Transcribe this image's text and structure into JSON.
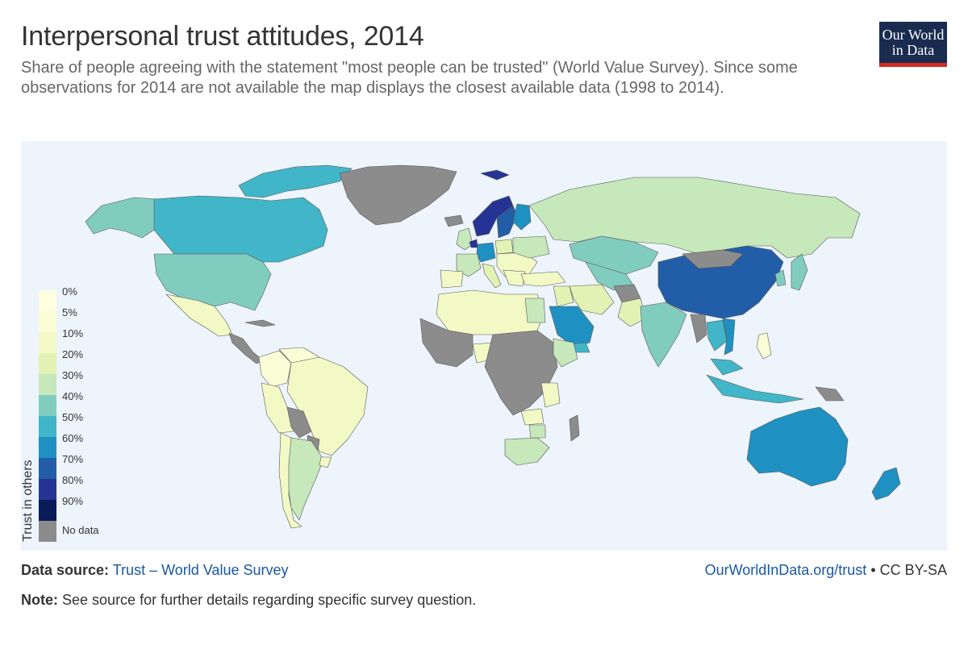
{
  "header": {
    "title": "Interpersonal trust attitudes, 2014",
    "subtitle": "Share of people agreeing with the statement \"most people can be trusted\" (World Value Survey). Since some observations for 2014 are not available the map displays the closest available data (1998 to 2014)."
  },
  "logo": {
    "line1": "Our World",
    "line2": "in Data",
    "bg_color": "#1a2b50",
    "accent_color": "#d42b21"
  },
  "legend": {
    "title": "Trust in others",
    "items": [
      {
        "label": "0%",
        "color": "#ffffe0"
      },
      {
        "label": "5%",
        "color": "#fbfdd6"
      },
      {
        "label": "10%",
        "color": "#f2f9c5"
      },
      {
        "label": "20%",
        "color": "#e2f2b4"
      },
      {
        "label": "30%",
        "color": "#c6e8bb"
      },
      {
        "label": "40%",
        "color": "#80cdc0"
      },
      {
        "label": "50%",
        "color": "#41b6c8"
      },
      {
        "label": "60%",
        "color": "#1e91c2"
      },
      {
        "label": "70%",
        "color": "#225ea8"
      },
      {
        "label": "80%",
        "color": "#253494"
      },
      {
        "label": "90%",
        "color": "#081d58"
      },
      {
        "label": "No data",
        "color": "#8c8c8c"
      }
    ]
  },
  "map": {
    "ocean_color": "#edf4fb",
    "border_color": "#555555"
  },
  "footer": {
    "source_label": "Data source:",
    "source_link": "Trust – World Value Survey",
    "site_link": "OurWorldInData.org/trust",
    "license": "• CC BY-SA",
    "note_label": "Note:",
    "note_text": "See source for further details regarding specific survey question."
  }
}
